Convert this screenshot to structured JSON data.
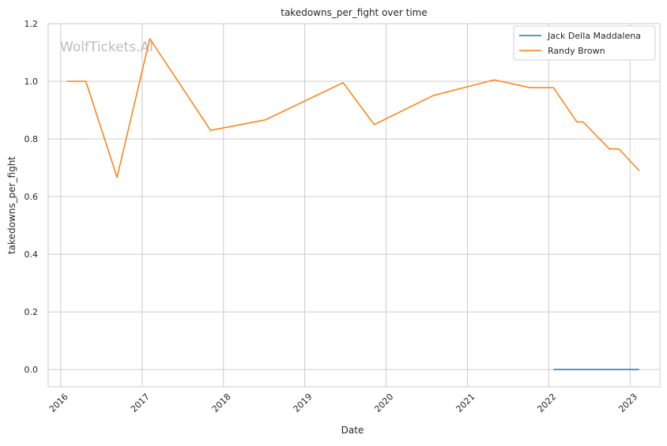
{
  "chart_data": {
    "type": "line",
    "title": "takedowns_per_fight over time",
    "xlabel": "Date",
    "ylabel": "takedowns_per_fight",
    "watermark": "WolfTickets.AI",
    "xlim": [
      "2015-11-06",
      "2023-05-15"
    ],
    "ylim": [
      -0.06,
      1.2
    ],
    "x_ticks": [
      "2016-01-01",
      "2017-01-01",
      "2018-01-01",
      "2019-01-01",
      "2020-01-01",
      "2021-01-01",
      "2022-01-01",
      "2023-01-01"
    ],
    "x_tick_labels": [
      "2016",
      "2017",
      "2018",
      "2019",
      "2020",
      "2021",
      "2022",
      "2023"
    ],
    "y_ticks": [
      0.0,
      0.2,
      0.4,
      0.6,
      0.8,
      1.0,
      1.2
    ],
    "y_tick_labels": [
      "0.0",
      "0.2",
      "0.4",
      "0.6",
      "0.8",
      "1.0",
      "1.2"
    ],
    "grid": true,
    "legend_position": "top-right",
    "series": [
      {
        "name": "Jack Della Maddalena",
        "color": "#1f77b4",
        "x": [
          "2022-01-22",
          "2022-04-09",
          "2022-06-25",
          "2022-10-01",
          "2023-02-11"
        ],
        "y": [
          0.0,
          0.0,
          0.0,
          0.0,
          0.0
        ]
      },
      {
        "name": "Randy Brown",
        "color": "#ff7f0e",
        "x": [
          "2016-01-30",
          "2016-04-23",
          "2016-09-10",
          "2017-02-04",
          "2017-11-04",
          "2018-07-07",
          "2019-06-22",
          "2019-11-09",
          "2020-08-01",
          "2021-05-01",
          "2021-10-09",
          "2022-01-22",
          "2022-05-07",
          "2022-06-04",
          "2022-10-01",
          "2022-11-12",
          "2023-02-11"
        ],
        "y": [
          1.0,
          1.0,
          0.667,
          1.148,
          0.83,
          0.866,
          0.995,
          0.85,
          0.951,
          1.005,
          0.978,
          0.978,
          0.859,
          0.859,
          0.765,
          0.765,
          0.69
        ]
      }
    ]
  }
}
